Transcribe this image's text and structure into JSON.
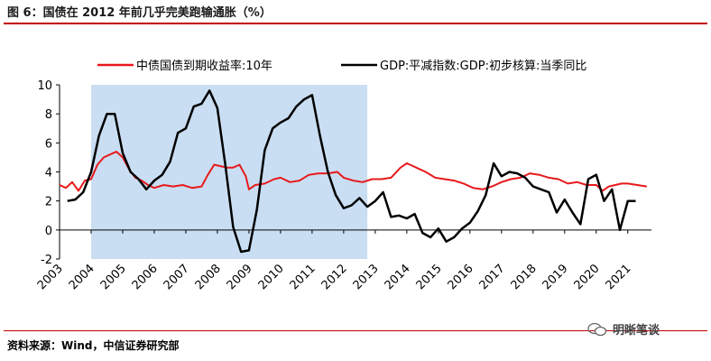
{
  "header": {
    "title": "图 6：国债在 2012 年前几乎完美跑输通胀（%）"
  },
  "footer": {
    "source": "资料来源：Wind，中信证券研究部",
    "watermark": "明晰笔谈"
  },
  "colors": {
    "bond": "#e8191c",
    "gdp": "#000000",
    "shade": "#c9def2",
    "accent_rule": "#c00000"
  },
  "chart_data": {
    "type": "line",
    "title": "",
    "xlabel": "",
    "ylabel": "",
    "xlim": [
      2003.0,
      2021.75
    ],
    "ylim": [
      -2,
      10
    ],
    "yticks": [
      -2,
      0,
      2,
      4,
      6,
      8,
      10
    ],
    "ytick_labels": [
      "-2",
      "0",
      "2",
      "4",
      "6",
      "8",
      "10"
    ],
    "xticks": [
      2003,
      2004,
      2005,
      2006,
      2007,
      2008,
      2009,
      2010,
      2011,
      2012,
      2013,
      2014,
      2015,
      2016,
      2017,
      2018,
      2019,
      2020,
      2021
    ],
    "xtick_labels": [
      "2003",
      "2004",
      "2005",
      "2006",
      "2007",
      "2008",
      "2009",
      "2010",
      "2011",
      "2012",
      "2013",
      "2014",
      "2015",
      "2016",
      "2017",
      "2018",
      "2019",
      "2020",
      "2021"
    ],
    "shaded_region": [
      2004.0,
      2012.75
    ],
    "legend": [
      "中债国债到期收益率:10年",
      "GDP:平减指数:GDP:初步核算:当季同比"
    ],
    "series": [
      {
        "name": "中债国债到期收益率:10年",
        "color": "#e8191c",
        "x": [
          2003.0,
          2003.2,
          2003.4,
          2003.6,
          2003.8,
          2004.0,
          2004.2,
          2004.4,
          2004.6,
          2004.8,
          2005.0,
          2005.2,
          2005.4,
          2005.6,
          2005.8,
          2006.0,
          2006.3,
          2006.6,
          2006.9,
          2007.2,
          2007.5,
          2007.7,
          2007.9,
          2008.1,
          2008.3,
          2008.5,
          2008.7,
          2008.9,
          2009.0,
          2009.2,
          2009.5,
          2009.8,
          2010.0,
          2010.3,
          2010.6,
          2010.9,
          2011.2,
          2011.5,
          2011.8,
          2012.0,
          2012.3,
          2012.6,
          2012.9,
          2013.2,
          2013.5,
          2013.8,
          2014.0,
          2014.3,
          2014.6,
          2014.9,
          2015.2,
          2015.5,
          2015.8,
          2016.1,
          2016.4,
          2016.7,
          2017.0,
          2017.3,
          2017.6,
          2017.9,
          2018.2,
          2018.5,
          2018.8,
          2019.1,
          2019.4,
          2019.7,
          2020.0,
          2020.2,
          2020.4,
          2020.6,
          2020.8,
          2021.0,
          2021.3,
          2021.6
        ],
        "values": [
          3.1,
          2.9,
          3.3,
          2.7,
          3.4,
          3.5,
          4.5,
          5.0,
          5.2,
          5.4,
          5.0,
          4.2,
          3.6,
          3.4,
          3.1,
          2.9,
          3.1,
          3.0,
          3.1,
          2.9,
          3.0,
          3.8,
          4.5,
          4.4,
          4.3,
          4.3,
          4.5,
          3.7,
          2.8,
          3.1,
          3.2,
          3.5,
          3.6,
          3.3,
          3.4,
          3.8,
          3.9,
          3.9,
          4.0,
          3.6,
          3.4,
          3.3,
          3.5,
          3.5,
          3.6,
          4.3,
          4.6,
          4.3,
          4.0,
          3.6,
          3.5,
          3.4,
          3.2,
          2.9,
          2.8,
          3.0,
          3.3,
          3.5,
          3.6,
          3.9,
          3.8,
          3.6,
          3.5,
          3.2,
          3.3,
          3.1,
          3.1,
          2.7,
          3.0,
          3.1,
          3.2,
          3.2,
          3.1,
          3.0
        ]
      },
      {
        "name": "GDP:平减指数:GDP:初步核算:当季同比",
        "color": "#000000",
        "x": [
          2003.25,
          2003.5,
          2003.75,
          2004.0,
          2004.25,
          2004.5,
          2004.75,
          2005.0,
          2005.25,
          2005.5,
          2005.75,
          2006.0,
          2006.25,
          2006.5,
          2006.75,
          2007.0,
          2007.25,
          2007.5,
          2007.75,
          2008.0,
          2008.25,
          2008.5,
          2008.75,
          2009.0,
          2009.25,
          2009.5,
          2009.75,
          2010.0,
          2010.25,
          2010.5,
          2010.75,
          2011.0,
          2011.25,
          2011.5,
          2011.75,
          2012.0,
          2012.25,
          2012.5,
          2012.75,
          2013.0,
          2013.25,
          2013.5,
          2013.75,
          2014.0,
          2014.25,
          2014.5,
          2014.75,
          2015.0,
          2015.25,
          2015.5,
          2015.75,
          2016.0,
          2016.25,
          2016.5,
          2016.75,
          2017.0,
          2017.25,
          2017.5,
          2017.75,
          2018.0,
          2018.25,
          2018.5,
          2018.75,
          2019.0,
          2019.25,
          2019.5,
          2019.75,
          2020.0,
          2020.25,
          2020.5,
          2020.75,
          2021.0,
          2021.25
        ],
        "values": [
          2.0,
          2.1,
          2.6,
          4.0,
          6.5,
          8.0,
          8.0,
          5.3,
          4.0,
          3.5,
          2.8,
          3.4,
          3.8,
          4.7,
          6.7,
          7.0,
          8.5,
          8.7,
          9.6,
          8.4,
          4.5,
          0.2,
          -1.5,
          -1.4,
          1.4,
          5.5,
          7.0,
          7.4,
          7.7,
          8.5,
          9.0,
          9.3,
          6.5,
          4.0,
          2.4,
          1.5,
          1.7,
          2.2,
          1.6,
          2.0,
          2.6,
          0.9,
          1.0,
          0.8,
          1.1,
          -0.2,
          -0.5,
          0.1,
          -0.8,
          -0.5,
          0.1,
          0.5,
          1.3,
          2.4,
          4.6,
          3.7,
          4.0,
          3.9,
          3.6,
          3.0,
          2.8,
          2.6,
          1.2,
          2.1,
          1.2,
          0.4,
          3.5,
          3.8,
          2.0,
          2.8,
          0.0,
          2.0,
          2.0
        ]
      }
    ]
  }
}
